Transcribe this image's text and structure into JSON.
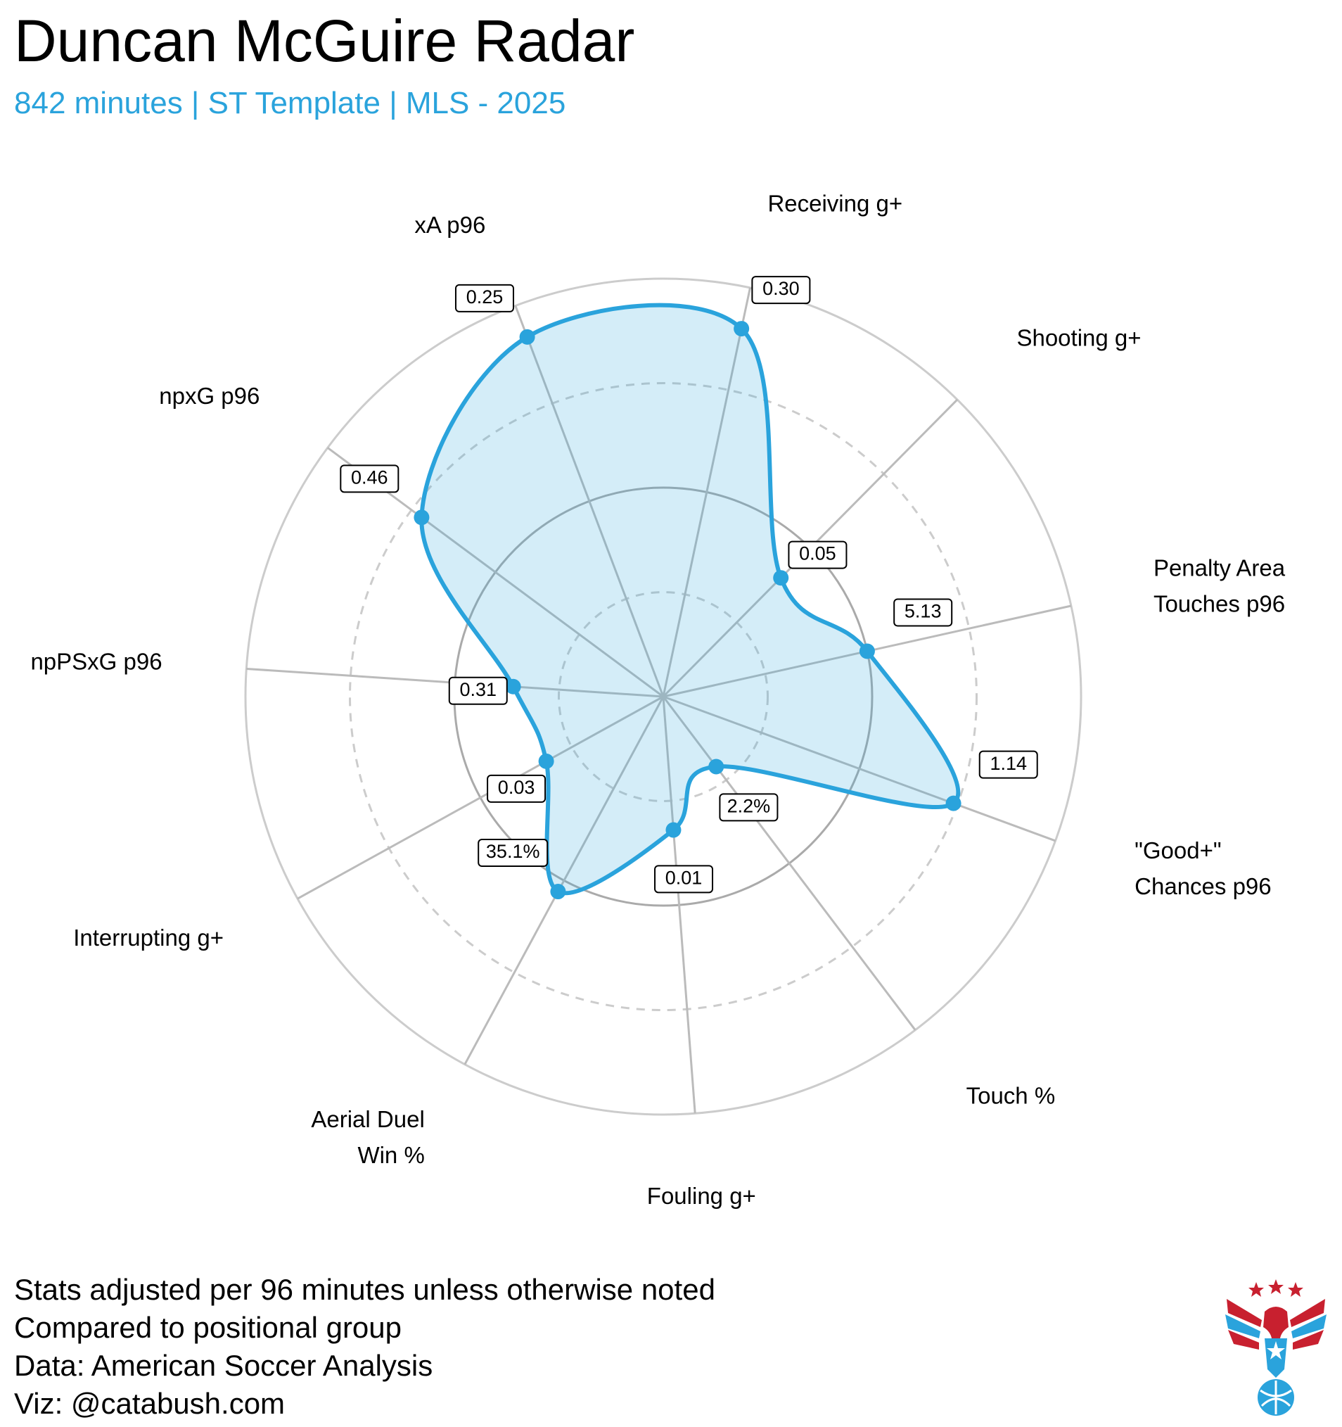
{
  "title": "Duncan McGuire Radar",
  "subtitle": "842 minutes | ST Template | MLS - 2025",
  "footer": [
    "Stats adjusted per 96 minutes unless otherwise noted",
    "Compared to positional group",
    "Data: American Soccer Analysis",
    "Viz: @catabush.com"
  ],
  "colors": {
    "accent": "#2aa3dc",
    "fill": "#d4ecf7",
    "grid": "#c8c8c8",
    "logo_red": "#c8202f",
    "logo_blue": "#2aa3dc"
  },
  "chart_data": {
    "type": "radar",
    "scale": "percentile",
    "rlim": [
      0,
      100
    ],
    "grid": true,
    "categories": [
      "Receiving g+",
      "Shooting g+",
      "Penalty Area Touches p96",
      "\"Good+\" Chances p96",
      "Touch %",
      "Fouling g+",
      "Aerial Duel Win %",
      "Interrupting g+",
      "npPSxG p96",
      "npxG p96",
      "xA p96"
    ],
    "category_lines": [
      [
        "Receiving g+"
      ],
      [
        "Shooting g+"
      ],
      [
        "Penalty Area",
        "Touches p96"
      ],
      [
        "\"Good+\"",
        "Chances p96"
      ],
      [
        "Touch %"
      ],
      [
        "Fouling g+"
      ],
      [
        "Aerial Duel",
        "Win %"
      ],
      [
        "Interrupting g+"
      ],
      [
        "npPSxG p96"
      ],
      [
        "npxG p96"
      ],
      [
        "xA p96"
      ]
    ],
    "value_labels": [
      "0.30",
      "0.05",
      "5.13",
      "1.14",
      "2.2%",
      "0.01",
      "35.1%",
      "0.03",
      "0.31",
      "0.46",
      "0.25"
    ],
    "percentiles": [
      90,
      40,
      50,
      74,
      21,
      32,
      53,
      32,
      36,
      72,
      92
    ]
  }
}
